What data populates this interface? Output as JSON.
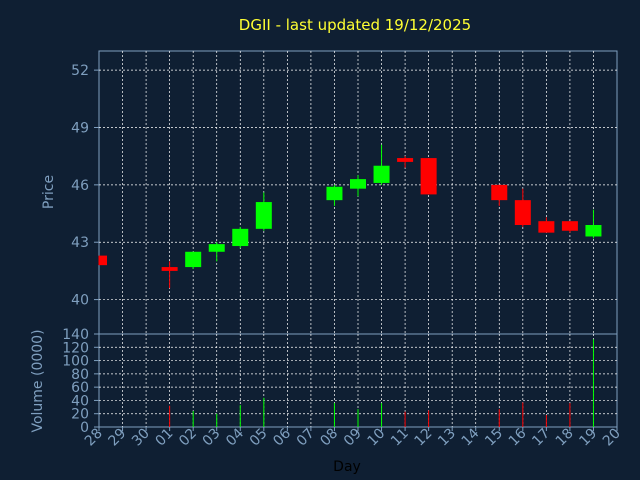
{
  "chart_data": {
    "type": "candlestick",
    "title": "DGII - last updated 19/12/2025",
    "xlabel": "Day",
    "x_ticks": [
      "28",
      "29",
      "30",
      "01",
      "02",
      "03",
      "04",
      "05",
      "06",
      "07",
      "08",
      "09",
      "10",
      "11",
      "12",
      "13",
      "14",
      "15",
      "16",
      "17",
      "18",
      "19",
      "20"
    ],
    "grid": true,
    "colors": {
      "background": "#0f1f33",
      "up": "#00ff00",
      "down": "#ff0000",
      "grid": "#ffffff",
      "text": "#7f9fbf",
      "title": "#ffff33"
    },
    "price_panel": {
      "ylabel": "Price",
      "ylim": [
        38.2,
        53.0
      ],
      "y_ticks": [
        40,
        43,
        46,
        49,
        52
      ],
      "candles": [
        {
          "day": "28",
          "open": 42.3,
          "high": 42.3,
          "low": 41.8,
          "close": 41.8
        },
        {
          "day": "01",
          "open": 41.7,
          "high": 42.0,
          "low": 40.6,
          "close": 41.5
        },
        {
          "day": "02",
          "open": 41.7,
          "high": 42.5,
          "low": 41.6,
          "close": 42.5
        },
        {
          "day": "03",
          "open": 42.5,
          "high": 43.0,
          "low": 42.0,
          "close": 42.9
        },
        {
          "day": "04",
          "open": 42.8,
          "high": 43.8,
          "low": 42.7,
          "close": 43.7
        },
        {
          "day": "05",
          "open": 43.7,
          "high": 45.6,
          "low": 43.6,
          "close": 45.1
        },
        {
          "day": "08",
          "open": 45.2,
          "high": 46.0,
          "low": 44.9,
          "close": 45.9
        },
        {
          "day": "09",
          "open": 45.8,
          "high": 46.5,
          "low": 45.4,
          "close": 46.3
        },
        {
          "day": "10",
          "open": 46.1,
          "high": 48.1,
          "low": 46.0,
          "close": 47.0
        },
        {
          "day": "11",
          "open": 47.4,
          "high": 47.5,
          "low": 46.9,
          "close": 47.2
        },
        {
          "day": "12",
          "open": 47.4,
          "high": 47.4,
          "low": 45.5,
          "close": 45.5
        },
        {
          "day": "15",
          "open": 46.0,
          "high": 46.0,
          "low": 44.9,
          "close": 45.2
        },
        {
          "day": "16",
          "open": 45.2,
          "high": 45.8,
          "low": 43.8,
          "close": 43.9
        },
        {
          "day": "17",
          "open": 44.1,
          "high": 44.3,
          "low": 43.5,
          "close": 43.5
        },
        {
          "day": "18",
          "open": 44.1,
          "high": 44.1,
          "low": 43.5,
          "close": 43.6
        },
        {
          "day": "19",
          "open": 43.3,
          "high": 44.7,
          "low": 43.2,
          "close": 43.9
        }
      ]
    },
    "volume_panel": {
      "ylabel": "Volume (0000)",
      "ylim": [
        0,
        140
      ],
      "y_ticks": [
        0,
        20,
        40,
        60,
        80,
        100,
        120,
        140
      ],
      "bars": [
        {
          "day": "01",
          "value": 32,
          "direction": "down"
        },
        {
          "day": "02",
          "value": 24,
          "direction": "up"
        },
        {
          "day": "03",
          "value": 20,
          "direction": "up"
        },
        {
          "day": "04",
          "value": 33,
          "direction": "up"
        },
        {
          "day": "05",
          "value": 44,
          "direction": "up"
        },
        {
          "day": "08",
          "value": 36,
          "direction": "up"
        },
        {
          "day": "09",
          "value": 27,
          "direction": "up"
        },
        {
          "day": "10",
          "value": 36,
          "direction": "up"
        },
        {
          "day": "11",
          "value": 23,
          "direction": "down"
        },
        {
          "day": "12",
          "value": 25,
          "direction": "down"
        },
        {
          "day": "15",
          "value": 27,
          "direction": "down"
        },
        {
          "day": "16",
          "value": 37,
          "direction": "down"
        },
        {
          "day": "17",
          "value": 18,
          "direction": "down"
        },
        {
          "day": "18",
          "value": 36,
          "direction": "down"
        },
        {
          "day": "19",
          "value": 132,
          "direction": "up"
        }
      ]
    }
  }
}
